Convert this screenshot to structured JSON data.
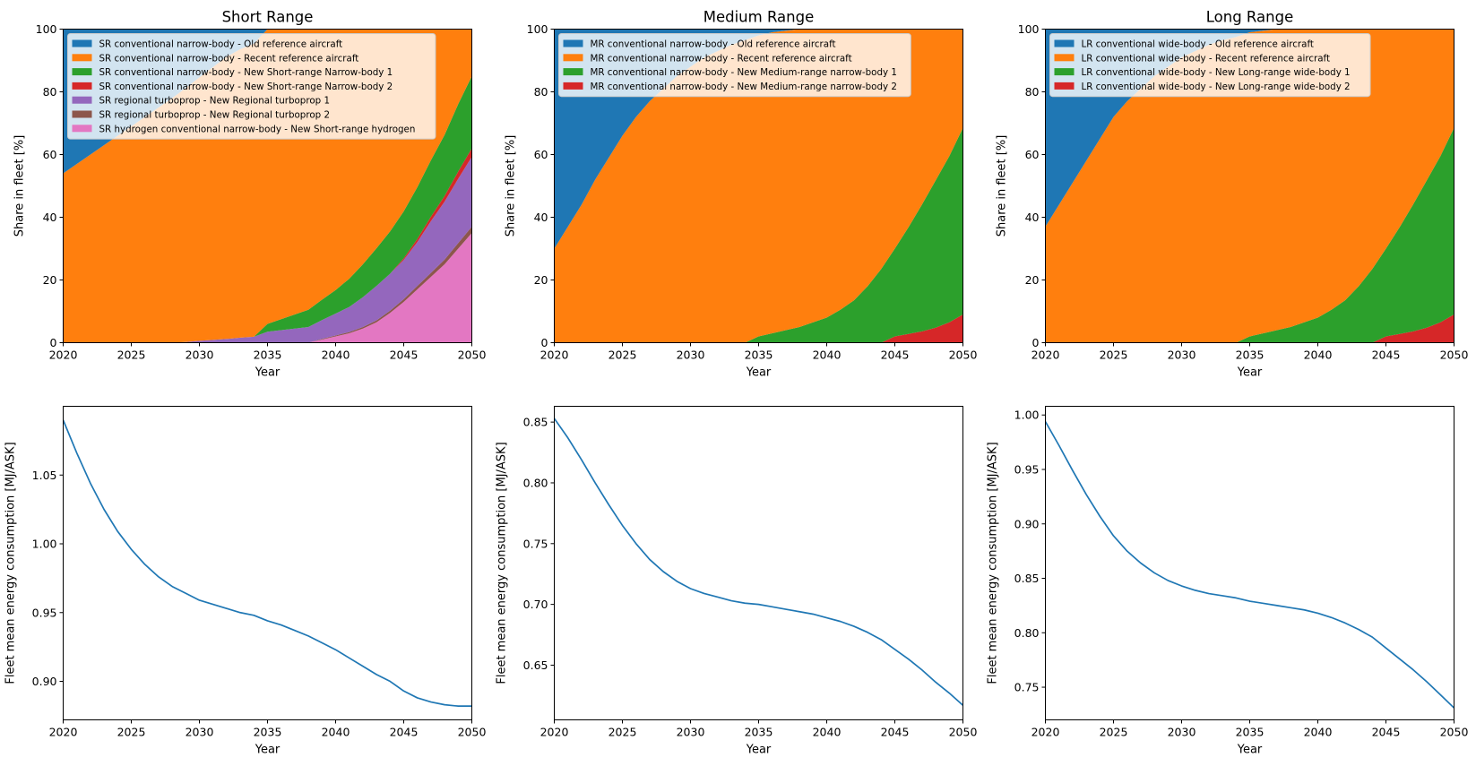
{
  "chart_data": [
    {
      "type": "area",
      "title": "Short Range",
      "xlabel": "Year",
      "ylabel": "Share in fleet [%]",
      "xlim": [
        2020,
        2050
      ],
      "ylim": [
        0,
        100
      ],
      "xticks": [
        "2020",
        "2025",
        "2030",
        "2035",
        "2040",
        "2045",
        "2050"
      ],
      "yticks": [
        "0",
        "20",
        "40",
        "60",
        "80",
        "100"
      ],
      "legend_position": "top-left",
      "x": [
        2020,
        2021,
        2022,
        2023,
        2024,
        2025,
        2026,
        2027,
        2028,
        2029,
        2030,
        2031,
        2032,
        2033,
        2034,
        2035,
        2036,
        2037,
        2038,
        2039,
        2040,
        2041,
        2042,
        2043,
        2044,
        2045,
        2046,
        2047,
        2048,
        2049,
        2050
      ],
      "series": [
        {
          "name": "SR hydrogen conventional narrow-body - New Short-range hydrogen",
          "color": "#e377c2",
          "values": [
            0,
            0,
            0,
            0,
            0,
            0,
            0,
            0,
            0,
            0,
            0,
            0,
            0,
            0,
            0,
            0,
            0,
            0,
            0,
            1,
            2,
            3,
            4.5,
            6.5,
            9.5,
            13,
            17,
            21,
            25,
            30,
            35
          ]
        },
        {
          "name": "SR regional turboprop - New Regional turboprop 2",
          "color": "#8c564b",
          "values": [
            0,
            0,
            0,
            0,
            0,
            0,
            0,
            0,
            0,
            0,
            0,
            0,
            0,
            0,
            0,
            0,
            0,
            0,
            0,
            0.2,
            0.3,
            0.4,
            0.5,
            0.6,
            0.7,
            0.9,
            1.1,
            1.3,
            1.5,
            1.8,
            2
          ]
        },
        {
          "name": "SR regional turboprop - New Regional turboprop 1",
          "color": "#9467bd",
          "values": [
            0,
            0,
            0,
            0,
            0,
            0,
            0,
            0,
            0,
            0.2,
            0.6,
            0.9,
            1.2,
            1.6,
            1.9,
            3.5,
            4,
            4.5,
            5,
            6,
            7,
            8,
            9.5,
            11,
            11.8,
            12.5,
            14,
            16.5,
            18.5,
            20.5,
            22.3
          ]
        },
        {
          "name": "SR conventional narrow-body - New Short-range Narrow-body 2",
          "color": "#d62728",
          "values": [
            0,
            0,
            0,
            0,
            0,
            0,
            0,
            0,
            0,
            0,
            0,
            0,
            0,
            0,
            0,
            0,
            0,
            0,
            0,
            0,
            0,
            0,
            0,
            0,
            0,
            0.5,
            1,
            1.4,
            1.8,
            2.3,
            2.7
          ]
        },
        {
          "name": "SR conventional narrow-body - New Short-range Narrow-body 1",
          "color": "#2ca02c",
          "values": [
            0,
            0,
            0,
            0,
            0,
            0,
            0,
            0,
            0,
            0,
            0,
            0,
            0,
            0,
            0,
            2.5,
            3.5,
            4.5,
            5.5,
            6.5,
            7.5,
            9,
            10.5,
            12,
            13.5,
            15,
            16.5,
            18,
            19.5,
            21.5,
            23
          ]
        },
        {
          "name": "SR conventional narrow-body - Recent reference aircraft",
          "color": "#ff7f0e",
          "values": [
            54,
            57,
            60,
            63,
            66,
            69,
            72,
            75,
            78,
            81,
            84,
            87,
            90,
            92,
            93.5,
            94,
            95,
            96,
            96.5,
            97,
            97.5,
            98,
            98.5,
            99,
            99.5,
            100,
            100,
            100,
            100,
            100,
            100
          ]
        },
        {
          "name": "SR conventional narrow-body - Old reference aircraft",
          "color": "#1f77b4",
          "values": [
            46,
            43,
            40,
            37,
            34,
            31,
            28,
            25,
            22,
            19,
            16,
            13,
            10,
            8,
            6.5,
            6,
            5,
            4,
            3.5,
            3,
            2.5,
            2,
            1.5,
            1,
            0.5,
            0,
            0,
            0,
            0,
            0,
            0
          ]
        }
      ]
    },
    {
      "type": "area",
      "title": "Medium Range",
      "xlabel": "Year",
      "ylabel": "Share in fleet [%]",
      "xlim": [
        2020,
        2050
      ],
      "ylim": [
        0,
        100
      ],
      "xticks": [
        "2020",
        "2025",
        "2030",
        "2035",
        "2040",
        "2045",
        "2050"
      ],
      "yticks": [
        "0",
        "20",
        "40",
        "60",
        "80",
        "100"
      ],
      "legend_position": "top-left",
      "x": [
        2020,
        2021,
        2022,
        2023,
        2024,
        2025,
        2026,
        2027,
        2028,
        2029,
        2030,
        2031,
        2032,
        2033,
        2034,
        2035,
        2036,
        2037,
        2038,
        2039,
        2040,
        2041,
        2042,
        2043,
        2044,
        2045,
        2046,
        2047,
        2048,
        2049,
        2050
      ],
      "series": [
        {
          "name": "MR conventional narrow-body - New Medium-range narrow-body 2",
          "color": "#d62728",
          "values": [
            0,
            0,
            0,
            0,
            0,
            0,
            0,
            0,
            0,
            0,
            0,
            0,
            0,
            0,
            0,
            0,
            0,
            0,
            0,
            0,
            0,
            0,
            0,
            0,
            0,
            2,
            2.8,
            3.6,
            4.8,
            6.5,
            9
          ]
        },
        {
          "name": "MR conventional narrow-body - New Medium-range narrow-body 1",
          "color": "#2ca02c",
          "values": [
            0,
            0,
            0,
            0,
            0,
            0,
            0,
            0,
            0,
            0,
            0,
            0,
            0,
            0,
            0,
            2,
            3,
            4,
            5,
            6.5,
            8,
            10.5,
            13.5,
            18,
            23.5,
            28,
            34,
            40.5,
            47,
            53,
            59.5
          ]
        },
        {
          "name": "MR conventional narrow-body - Recent reference aircraft",
          "color": "#ff7f0e",
          "values": [
            30,
            37,
            44,
            52,
            59,
            66,
            72,
            77,
            81,
            85,
            88,
            91,
            93,
            95,
            96.5,
            96,
            96,
            95.5,
            95,
            93.5,
            92,
            89.5,
            86.5,
            82,
            76.5,
            70,
            63.2,
            55.9,
            48.2,
            40.5,
            31.5
          ]
        },
        {
          "name": "MR conventional narrow-body - Old reference aircraft",
          "color": "#1f77b4",
          "values": [
            70,
            63,
            56,
            48,
            41,
            34,
            28,
            23,
            19,
            15,
            12,
            9,
            7,
            5,
            3.5,
            2,
            1,
            0.5,
            0,
            0,
            0,
            0,
            0,
            0,
            0,
            0,
            0,
            0,
            0,
            0,
            0
          ]
        }
      ]
    },
    {
      "type": "area",
      "title": "Long Range",
      "xlabel": "Year",
      "ylabel": "Share in fleet [%]",
      "xlim": [
        2020,
        2050
      ],
      "ylim": [
        0,
        100
      ],
      "xticks": [
        "2020",
        "2025",
        "2030",
        "2035",
        "2040",
        "2045",
        "2050"
      ],
      "yticks": [
        "0",
        "20",
        "40",
        "60",
        "80",
        "100"
      ],
      "legend_position": "top-left",
      "x": [
        2020,
        2021,
        2022,
        2023,
        2024,
        2025,
        2026,
        2027,
        2028,
        2029,
        2030,
        2031,
        2032,
        2033,
        2034,
        2035,
        2036,
        2037,
        2038,
        2039,
        2040,
        2041,
        2042,
        2043,
        2044,
        2045,
        2046,
        2047,
        2048,
        2049,
        2050
      ],
      "series": [
        {
          "name": "LR conventional wide-body - New Long-range wide-body 2",
          "color": "#d62728",
          "values": [
            0,
            0,
            0,
            0,
            0,
            0,
            0,
            0,
            0,
            0,
            0,
            0,
            0,
            0,
            0,
            0,
            0,
            0,
            0,
            0,
            0,
            0,
            0,
            0,
            0,
            2,
            2.8,
            3.6,
            4.8,
            6.5,
            9
          ]
        },
        {
          "name": "LR conventional wide-body - New Long-range wide-body 1",
          "color": "#2ca02c",
          "values": [
            0,
            0,
            0,
            0,
            0,
            0,
            0,
            0,
            0,
            0,
            0,
            0,
            0,
            0,
            0,
            2,
            3,
            4,
            5,
            6.5,
            8,
            10.5,
            13.5,
            18,
            23.5,
            28,
            34,
            40.5,
            47,
            53,
            59.5
          ]
        },
        {
          "name": "LR conventional wide-body - Recent reference aircraft",
          "color": "#ff7f0e",
          "values": [
            37,
            44,
            51,
            58,
            65,
            72,
            77,
            81,
            85,
            88,
            91,
            93,
            95,
            96.5,
            97.5,
            97,
            96.5,
            96,
            95,
            93.5,
            92,
            89.5,
            86.5,
            82,
            76.5,
            70,
            63.2,
            55.9,
            48.2,
            40.5,
            31.5
          ]
        },
        {
          "name": "LR conventional wide-body - Old reference aircraft",
          "color": "#1f77b4",
          "values": [
            63,
            56,
            49,
            42,
            35,
            28,
            23,
            19,
            15,
            12,
            9,
            7,
            5,
            3.5,
            2.5,
            1,
            0.5,
            0,
            0,
            0,
            0,
            0,
            0,
            0,
            0,
            0,
            0,
            0,
            0,
            0,
            0
          ]
        }
      ]
    },
    {
      "type": "line",
      "title": "",
      "xlabel": "Year",
      "ylabel": "Fleet mean energy consumption [MJ/ASK]",
      "xlim": [
        2020,
        2050
      ],
      "ylim": [
        0.872,
        1.1
      ],
      "xticks": [
        "2020",
        "2025",
        "2030",
        "2035",
        "2040",
        "2045",
        "2050"
      ],
      "yticks": [
        "0.90",
        "0.95",
        "1.00",
        "1.05"
      ],
      "color": "#1f77b4",
      "x": [
        2020,
        2021,
        2022,
        2023,
        2024,
        2025,
        2026,
        2027,
        2028,
        2029,
        2030,
        2031,
        2032,
        2033,
        2034,
        2035,
        2036,
        2037,
        2038,
        2039,
        2040,
        2041,
        2042,
        2043,
        2044,
        2045,
        2046,
        2047,
        2048,
        2049,
        2050
      ],
      "values": [
        1.09,
        1.066,
        1.044,
        1.025,
        1.009,
        0.996,
        0.985,
        0.976,
        0.969,
        0.964,
        0.959,
        0.956,
        0.953,
        0.95,
        0.948,
        0.944,
        0.941,
        0.937,
        0.933,
        0.928,
        0.923,
        0.917,
        0.911,
        0.905,
        0.9,
        0.893,
        0.888,
        0.885,
        0.883,
        0.882,
        0.882
      ]
    },
    {
      "type": "line",
      "title": "",
      "xlabel": "Year",
      "ylabel": "Fleet mean energy consumption [MJ/ASK]",
      "xlim": [
        2020,
        2050
      ],
      "ylim": [
        0.605,
        0.863
      ],
      "xticks": [
        "2020",
        "2025",
        "2030",
        "2035",
        "2040",
        "2045",
        "2050"
      ],
      "yticks": [
        "0.65",
        "0.70",
        "0.75",
        "0.80",
        "0.85"
      ],
      "color": "#1f77b4",
      "x": [
        2020,
        2021,
        2022,
        2023,
        2024,
        2025,
        2026,
        2027,
        2028,
        2029,
        2030,
        2031,
        2032,
        2033,
        2034,
        2035,
        2036,
        2037,
        2038,
        2039,
        2040,
        2041,
        2042,
        2043,
        2044,
        2045,
        2046,
        2047,
        2048,
        2049,
        2050
      ],
      "values": [
        0.853,
        0.837,
        0.819,
        0.8,
        0.782,
        0.765,
        0.75,
        0.737,
        0.727,
        0.719,
        0.713,
        0.709,
        0.706,
        0.703,
        0.701,
        0.7,
        0.698,
        0.696,
        0.694,
        0.692,
        0.689,
        0.686,
        0.682,
        0.677,
        0.671,
        0.663,
        0.655,
        0.646,
        0.636,
        0.627,
        0.617
      ]
    },
    {
      "type": "line",
      "title": "",
      "xlabel": "Year",
      "ylabel": "Fleet mean energy consumption [MJ/ASK]",
      "xlim": [
        2020,
        2050
      ],
      "ylim": [
        0.72,
        1.008
      ],
      "xticks": [
        "2020",
        "2025",
        "2030",
        "2035",
        "2040",
        "2045",
        "2050"
      ],
      "yticks": [
        "0.75",
        "0.80",
        "0.85",
        "0.90",
        "0.95",
        "1.00"
      ],
      "color": "#1f77b4",
      "x": [
        2020,
        2021,
        2022,
        2023,
        2024,
        2025,
        2026,
        2027,
        2028,
        2029,
        2030,
        2031,
        2032,
        2033,
        2034,
        2035,
        2036,
        2037,
        2038,
        2039,
        2040,
        2041,
        2042,
        2043,
        2044,
        2045,
        2046,
        2047,
        2048,
        2049,
        2050
      ],
      "values": [
        0.994,
        0.972,
        0.949,
        0.927,
        0.907,
        0.889,
        0.875,
        0.864,
        0.855,
        0.848,
        0.843,
        0.839,
        0.836,
        0.834,
        0.832,
        0.829,
        0.827,
        0.825,
        0.823,
        0.821,
        0.818,
        0.814,
        0.809,
        0.803,
        0.796,
        0.786,
        0.776,
        0.766,
        0.755,
        0.743,
        0.731
      ]
    }
  ]
}
